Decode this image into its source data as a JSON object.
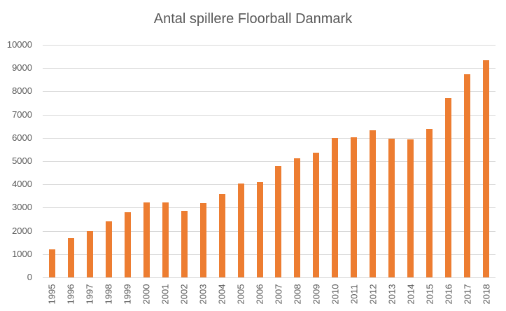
{
  "chart_data": {
    "type": "bar",
    "title": "Antal spillere Floorball Danmark",
    "xlabel": "",
    "ylabel": "",
    "ylim": [
      0,
      10000
    ],
    "yticks": [
      0,
      1000,
      2000,
      3000,
      4000,
      5000,
      6000,
      7000,
      8000,
      9000,
      10000
    ],
    "grid": true,
    "legend": null,
    "bar_color": "#ED7D31",
    "categories": [
      "1995",
      "1996",
      "1997",
      "1998",
      "1999",
      "2000",
      "2001",
      "2002",
      "2003",
      "2004",
      "2005",
      "2006",
      "2007",
      "2008",
      "2009",
      "2010",
      "2011",
      "2012",
      "2013",
      "2014",
      "2015",
      "2016",
      "2017",
      "2018"
    ],
    "values": [
      1190,
      1700,
      2000,
      2420,
      2810,
      3210,
      3230,
      2870,
      3200,
      3570,
      4040,
      4090,
      4790,
      5130,
      5370,
      6000,
      6020,
      6320,
      5970,
      5940,
      6390,
      7720,
      8750,
      9330
    ]
  }
}
